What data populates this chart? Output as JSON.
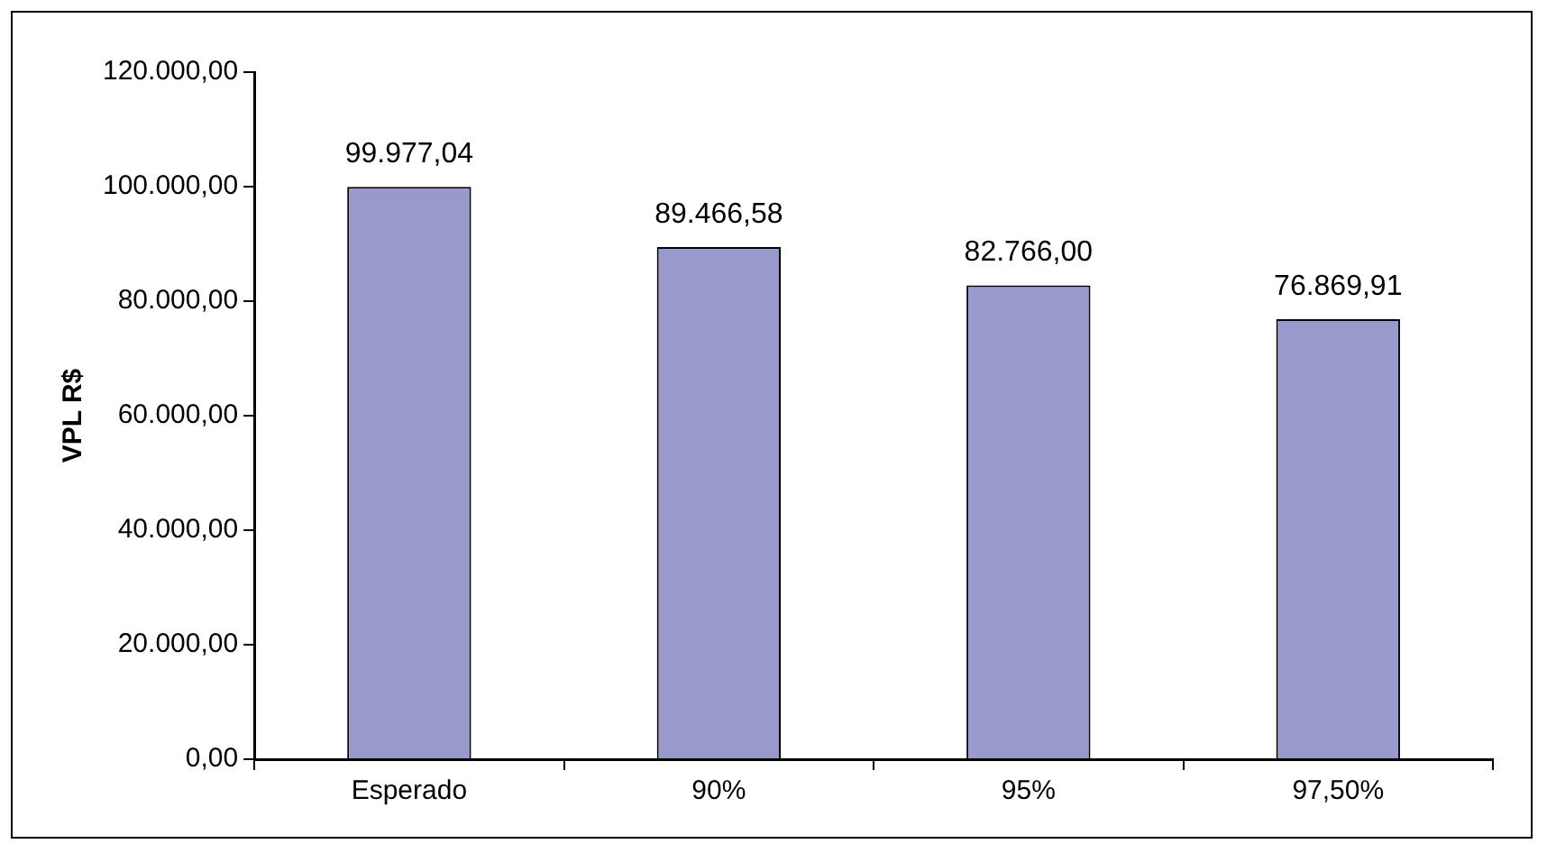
{
  "chart_data": {
    "type": "bar",
    "ylabel": "VPL R$",
    "categories": [
      "Esperado",
      "90%",
      "95%",
      "97,50%"
    ],
    "values": [
      99977.04,
      89466.58,
      82766.0,
      76869.91
    ],
    "value_labels": [
      "99.977,04",
      "89.466,58",
      "82.766,00",
      "76.869,91"
    ],
    "color": "#9999cc",
    "ylim": [
      0,
      120000
    ],
    "yticks": [
      {
        "value": 0,
        "label": "0,00"
      },
      {
        "value": 20000,
        "label": "20.000,00"
      },
      {
        "value": 40000,
        "label": "40.000,00"
      },
      {
        "value": 60000,
        "label": "60.000,00"
      },
      {
        "value": 80000,
        "label": "80.000,00"
      },
      {
        "value": 100000,
        "label": "100.000,00"
      },
      {
        "value": 120000,
        "label": "120.000,00"
      }
    ],
    "grid": false,
    "legend": false
  }
}
